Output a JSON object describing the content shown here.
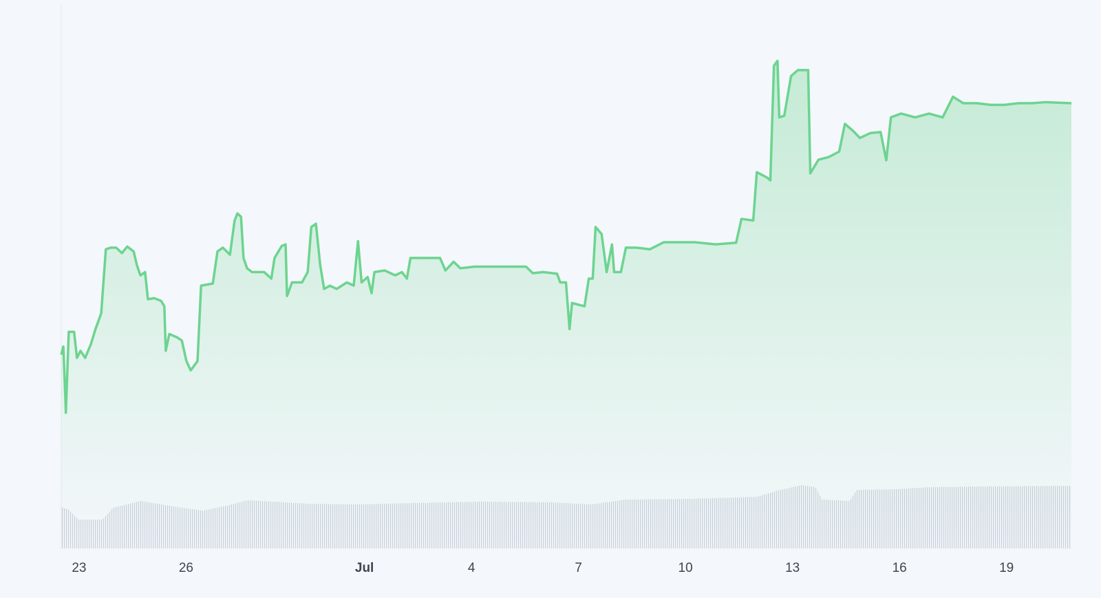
{
  "chart_data": {
    "type": "line",
    "x": [
      22.5,
      22.56,
      22.63,
      22.71,
      22.86,
      22.94,
      23.04,
      23.17,
      23.33,
      23.46,
      23.62,
      23.75,
      23.89,
      24.04,
      24.2,
      24.35,
      24.53,
      24.62,
      24.72,
      24.85,
      24.93,
      25.1,
      25.3,
      25.39,
      25.43,
      25.53,
      25.74,
      25.88,
      26.01,
      26.13,
      26.32,
      26.42,
      26.75,
      26.88,
      27.03,
      27.23,
      27.36,
      27.44,
      27.54,
      27.61,
      27.71,
      27.85,
      28.19,
      28.39,
      28.48,
      28.68,
      28.79,
      28.83,
      28.97,
      29.25,
      29.41,
      29.51,
      29.64,
      29.76,
      29.87,
      30.03,
      30.22,
      30.51,
      30.7,
      30.82,
      30.92,
      31.09,
      31.2,
      31.28,
      31.57,
      31.86,
      32.05,
      32.19,
      32.29,
      32.73,
      33.12,
      33.27,
      33.5,
      33.69,
      34.08,
      34.66,
      35.53,
      35.72,
      36.01,
      36.4,
      36.49,
      36.65,
      36.75,
      36.82,
      37.17,
      37.29,
      37.4,
      37.48,
      37.65,
      37.79,
      37.94,
      38.0,
      38.19,
      38.33,
      38.62,
      39.0,
      39.39,
      39.87,
      40.26,
      40.84,
      41.42,
      41.57,
      41.9,
      42.0,
      42.29,
      42.38,
      42.48,
      42.58,
      42.63,
      42.77,
      42.96,
      43.15,
      43.44,
      43.5,
      43.73,
      44.02,
      44.31,
      44.47,
      44.7,
      44.89,
      45.18,
      45.47,
      45.63,
      45.76,
      46.05,
      46.44,
      46.83,
      47.21,
      47.5,
      47.79,
      48.17,
      48.56,
      48.95,
      49.33,
      49.72,
      50.1,
      50.82
    ],
    "series": [
      {
        "color": "#6cd48f",
        "values": [
          35.7,
          37.2,
          25.0,
          39.9,
          39.9,
          35.1,
          36.4,
          35.1,
          37.6,
          40.4,
          43.3,
          55.1,
          55.4,
          55.4,
          54.4,
          55.6,
          54.7,
          52.2,
          50.3,
          50.9,
          45.9,
          46.1,
          45.6,
          44.6,
          36.4,
          39.5,
          38.9,
          38.3,
          34.5,
          32.8,
          34.5,
          48.4,
          48.8,
          54.7,
          55.4,
          54.1,
          60.4,
          61.7,
          61.1,
          53.5,
          51.6,
          50.9,
          50.9,
          49.7,
          53.5,
          55.7,
          56.0,
          46.5,
          49.0,
          49.0,
          50.9,
          59.2,
          59.8,
          52.2,
          47.8,
          48.4,
          47.8,
          49.0,
          48.4,
          56.6,
          49.0,
          50.0,
          47.0,
          50.9,
          51.2,
          50.3,
          50.9,
          49.7,
          53.5,
          53.5,
          53.5,
          51.2,
          52.8,
          51.6,
          51.9,
          51.9,
          51.9,
          50.7,
          50.9,
          50.6,
          49.0,
          49.0,
          40.4,
          45.2,
          44.6,
          49.7,
          49.7,
          59.2,
          57.9,
          50.9,
          56.0,
          50.9,
          50.9,
          55.4,
          55.4,
          55.1,
          56.4,
          56.4,
          56.4,
          56.0,
          56.3,
          60.7,
          60.4,
          69.3,
          68.3,
          67.8,
          88.9,
          89.8,
          79.4,
          79.7,
          87.0,
          88.1,
          88.1,
          69.1,
          71.6,
          72.1,
          73.1,
          78.2,
          76.9,
          75.6,
          76.5,
          76.7,
          71.5,
          79.4,
          80.1,
          79.4,
          80.1,
          79.4,
          83.2,
          82.0,
          82.0,
          81.7,
          81.7,
          82.0,
          82.0,
          82.2,
          82.0
        ]
      }
    ],
    "ylim": [
      0,
      100
    ],
    "xlim": [
      22.5,
      50.82
    ],
    "xticks": [
      23,
      26,
      {
        "value": 31,
        "label": "Jul"
      },
      {
        "value": 34,
        "label": "4"
      },
      {
        "value": 37,
        "label": "7"
      },
      {
        "value": 40,
        "label": "10"
      },
      {
        "value": 43,
        "label": "13"
      },
      {
        "value": 46,
        "label": "16"
      },
      {
        "value": 49,
        "label": "19"
      }
    ],
    "volume": {
      "color": "#c9cfda",
      "x": [
        22.5,
        22.69,
        22.98,
        23.66,
        23.95,
        24.72,
        25.78,
        26.46,
        27.13,
        27.71,
        28.48,
        29.45,
        30.8,
        32.34,
        34.27,
        36.2,
        37.36,
        38.33,
        40.07,
        42.0,
        42.58,
        43.25,
        43.64,
        43.83,
        44.6,
        44.8,
        45.86,
        46.83,
        48.17,
        50.82
      ],
      "values": [
        65.2,
        62.0,
        45.7,
        45.7,
        64.1,
        75.0,
        65.2,
        59.8,
        67.4,
        76.1,
        73.9,
        70.7,
        69.6,
        71.7,
        73.9,
        72.8,
        69.6,
        77.2,
        78.3,
        81.5,
        91.3,
        100,
        96.7,
        77.2,
        75.0,
        92.4,
        93.5,
        96.7,
        97.8,
        98.9
      ],
      "ylim": [
        0,
        100
      ]
    }
  }
}
